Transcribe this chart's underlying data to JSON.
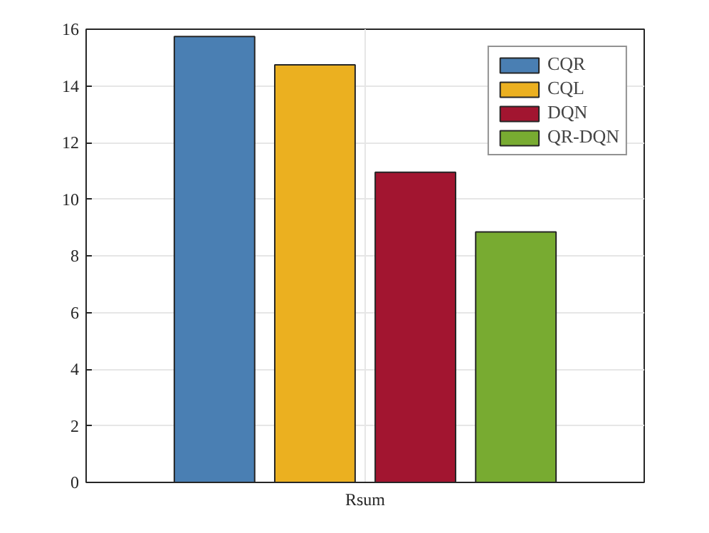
{
  "chart_data": {
    "type": "bar",
    "categories": [
      "Rsum"
    ],
    "series": [
      {
        "name": "CQR",
        "color": "#4a7fb3",
        "values": [
          15.74
        ]
      },
      {
        "name": "CQL",
        "color": "#ebb020",
        "values": [
          14.74
        ]
      },
      {
        "name": "DQN",
        "color": "#a21530",
        "values": [
          10.95
        ]
      },
      {
        "name": "QR-DQN",
        "color": "#78ab31",
        "values": [
          8.84
        ]
      }
    ],
    "ylim": [
      0,
      16
    ],
    "yticks": [
      0,
      2,
      4,
      6,
      8,
      10,
      12,
      14,
      16
    ],
    "grid": true,
    "legend": "top right"
  }
}
